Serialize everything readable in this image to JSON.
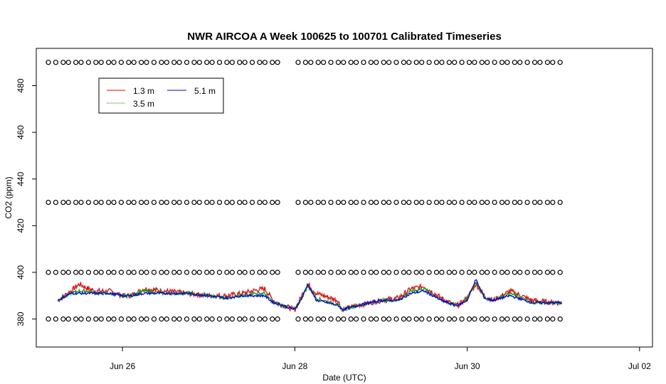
{
  "chart_data": {
    "type": "line",
    "title": "NWR AIRCOA A  Week 100625 to 100701  Calibrated Timeseries",
    "xlabel": "Date (UTC)",
    "ylabel": "CO2 (ppm)",
    "x_unit": "days",
    "xlim": [
      25.0,
      32.15
    ],
    "ylim": [
      368,
      496
    ],
    "x_ticks": [
      {
        "value": 26,
        "label": "Jun 26"
      },
      {
        "value": 28,
        "label": "Jun 28"
      },
      {
        "value": 30,
        "label": "Jun 30"
      },
      {
        "value": 32,
        "label": "Jul 02"
      }
    ],
    "y_ticks": [
      {
        "value": 380,
        "label": "380"
      },
      {
        "value": 400,
        "label": "400"
      },
      {
        "value": 420,
        "label": "420"
      },
      {
        "value": 440,
        "label": "440"
      },
      {
        "value": 460,
        "label": "460"
      },
      {
        "value": 480,
        "label": "480"
      }
    ],
    "grid": false,
    "legend": {
      "placement": "top-left",
      "entries": [
        {
          "name": "1.3 m",
          "color": "#ff0000"
        },
        {
          "name": "3.5 m",
          "color": "#00aa00"
        },
        {
          "name": "5.1 m",
          "color": "#0000ff"
        }
      ]
    },
    "series": [
      {
        "name": "1.3 m",
        "color": "#ff0000",
        "x": [
          25.25,
          25.4,
          25.5,
          25.6,
          25.7,
          25.85,
          26.0,
          26.1,
          26.25,
          26.5,
          26.75,
          27.0,
          27.2,
          27.4,
          27.5,
          27.65,
          27.75,
          27.85,
          28.0,
          28.08,
          28.15,
          28.25,
          28.5,
          28.55,
          28.75,
          29.0,
          29.2,
          29.35,
          29.5,
          29.7,
          29.85,
          29.9,
          30.0,
          30.1,
          30.2,
          30.3,
          30.5,
          30.75,
          31.0,
          31.1
        ],
        "y": [
          388,
          392,
          395,
          393,
          392,
          392,
          390,
          390,
          393,
          392,
          391,
          390,
          390,
          391,
          392,
          393,
          388,
          386,
          384,
          390,
          395,
          391,
          388,
          384,
          386,
          388,
          389,
          393,
          394,
          389,
          386,
          386,
          389,
          395,
          390,
          388,
          392,
          388,
          387,
          387
        ]
      },
      {
        "name": "3.5 m",
        "color": "#00aa00",
        "x": [
          25.25,
          25.4,
          25.5,
          25.6,
          25.7,
          25.85,
          26.0,
          26.1,
          26.25,
          26.5,
          26.75,
          27.0,
          27.2,
          27.4,
          27.5,
          27.65,
          27.75,
          27.85,
          28.0,
          28.08,
          28.15,
          28.25,
          28.5,
          28.55,
          28.75,
          29.0,
          29.2,
          29.35,
          29.5,
          29.7,
          29.85,
          29.9,
          30.0,
          30.1,
          30.2,
          30.3,
          30.5,
          30.75,
          31.0,
          31.1
        ],
        "y": [
          388,
          391,
          392,
          392,
          391,
          391,
          390,
          390,
          392,
          391,
          391,
          390,
          389,
          390,
          391,
          391,
          387,
          386,
          384,
          389,
          394,
          389,
          386,
          384,
          386,
          388,
          388,
          392,
          393,
          388,
          386,
          386,
          389,
          396,
          389,
          388,
          391,
          387,
          387,
          387
        ]
      },
      {
        "name": "5.1 m",
        "color": "#0000ff",
        "x": [
          25.25,
          25.4,
          25.5,
          25.6,
          25.7,
          25.85,
          26.0,
          26.1,
          26.25,
          26.5,
          26.75,
          27.0,
          27.2,
          27.4,
          27.5,
          27.65,
          27.75,
          27.85,
          28.0,
          28.08,
          28.15,
          28.25,
          28.5,
          28.55,
          28.75,
          29.0,
          29.2,
          29.35,
          29.5,
          29.7,
          29.85,
          29.9,
          30.0,
          30.1,
          30.2,
          30.3,
          30.5,
          30.75,
          31.0,
          31.1
        ],
        "y": [
          388,
          391,
          391,
          391,
          391,
          391,
          390,
          390,
          391,
          391,
          391,
          390,
          389,
          390,
          390,
          390,
          387,
          386,
          384,
          389,
          395,
          388,
          386,
          384,
          386,
          388,
          388,
          391,
          392,
          388,
          386,
          386,
          388,
          397,
          389,
          388,
          390,
          387,
          387,
          387
        ]
      }
    ],
    "reference_markers": [
      {
        "y": 490,
        "x_start": 25.15,
        "x_end": 31.1,
        "gap": [
          27.85,
          28.03
        ]
      },
      {
        "y": 430,
        "x_start": 25.15,
        "x_end": 31.1,
        "gap": [
          27.85,
          28.03
        ]
      },
      {
        "y": 400,
        "x_start": 25.15,
        "x_end": 31.1,
        "gap": [
          27.85,
          28.03
        ]
      },
      {
        "y": 380,
        "x_start": 25.15,
        "x_end": 31.1,
        "gap": [
          27.85,
          28.03
        ]
      }
    ]
  }
}
